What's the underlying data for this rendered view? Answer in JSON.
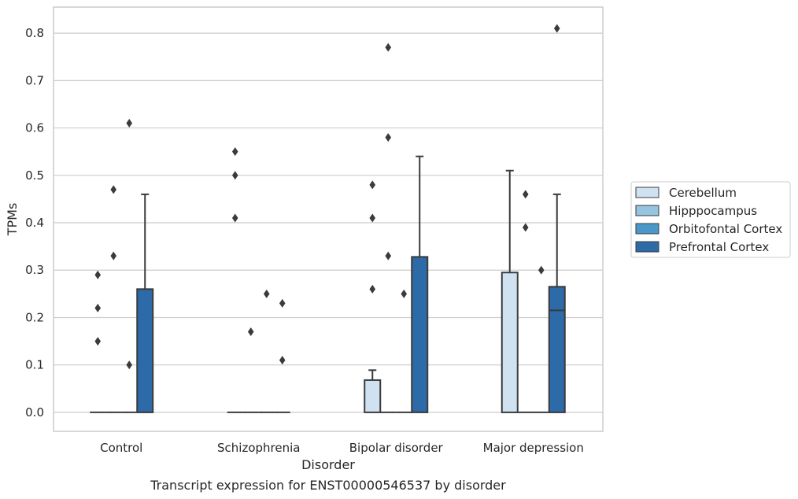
{
  "chart_data": {
    "type": "box",
    "caption": "Transcript expression for ENST00000546537 by disorder",
    "xlabel": "Disorder",
    "ylabel": "TPMs",
    "ylim": [
      -0.04,
      0.855
    ],
    "yticks": [
      "0.0",
      "0.1",
      "0.2",
      "0.3",
      "0.4",
      "0.5",
      "0.6",
      "0.7",
      "0.8"
    ],
    "categories": [
      "Control",
      "Schizophrenia",
      "Bipolar disorder",
      "Major depression"
    ],
    "grid": true,
    "legend_position": "right",
    "series": [
      {
        "name": "Cerebellum",
        "color": "#d0e1f2",
        "boxes": [
          {
            "min": 0,
            "q1": 0,
            "median": 0,
            "q3": 0,
            "max": 0,
            "outliers": [
              0.15,
              0.22,
              0.29
            ]
          },
          {
            "min": 0,
            "q1": 0,
            "median": 0,
            "q3": 0,
            "max": 0,
            "outliers": [
              0.41,
              0.5,
              0.55
            ]
          },
          {
            "min": 0,
            "q1": 0,
            "median": 0,
            "q3": 0.068,
            "max": 0.089,
            "outliers": [
              0.26,
              0.41,
              0.48
            ]
          },
          {
            "min": 0,
            "q1": 0,
            "median": 0,
            "q3": 0.295,
            "max": 0.51,
            "outliers": []
          }
        ]
      },
      {
        "name": "Hipppocampus",
        "color": "#94c4df",
        "boxes": [
          {
            "min": 0,
            "q1": 0,
            "median": 0,
            "q3": 0,
            "max": 0,
            "outliers": [
              0.33,
              0.47
            ]
          },
          {
            "min": 0,
            "q1": 0,
            "median": 0,
            "q3": 0,
            "max": 0,
            "outliers": [
              0.17
            ]
          },
          {
            "min": 0,
            "q1": 0,
            "median": 0,
            "q3": 0,
            "max": 0,
            "outliers": [
              0.33,
              0.58,
              0.77
            ]
          },
          {
            "min": 0,
            "q1": 0,
            "median": 0,
            "q3": 0,
            "max": 0,
            "outliers": [
              0.39,
              0.46
            ]
          }
        ]
      },
      {
        "name": "Orbitofontal Cortex",
        "color": "#4a98c9",
        "boxes": [
          {
            "min": 0,
            "q1": 0,
            "median": 0,
            "q3": 0,
            "max": 0,
            "outliers": [
              0.1,
              0.61
            ]
          },
          {
            "min": 0,
            "q1": 0,
            "median": 0,
            "q3": 0,
            "max": 0,
            "outliers": [
              0.25
            ]
          },
          {
            "min": 0,
            "q1": 0,
            "median": 0,
            "q3": 0,
            "max": 0,
            "outliers": [
              0.25
            ]
          },
          {
            "min": 0,
            "q1": 0,
            "median": 0,
            "q3": 0,
            "max": 0,
            "outliers": [
              0.3
            ]
          }
        ]
      },
      {
        "name": "Prefrontal Cortex",
        "color": "#2c6aa8",
        "boxes": [
          {
            "min": 0,
            "q1": 0,
            "median": 0,
            "q3": 0.26,
            "max": 0.46,
            "outliers": []
          },
          {
            "min": 0,
            "q1": 0,
            "median": 0,
            "q3": 0,
            "max": 0,
            "outliers": [
              0.11,
              0.23
            ]
          },
          {
            "min": 0,
            "q1": 0,
            "median": 0,
            "q3": 0.328,
            "max": 0.54,
            "outliers": []
          },
          {
            "min": 0,
            "q1": 0,
            "median": 0.215,
            "q3": 0.265,
            "max": 0.46,
            "outliers": [
              0.81
            ]
          }
        ]
      }
    ]
  }
}
